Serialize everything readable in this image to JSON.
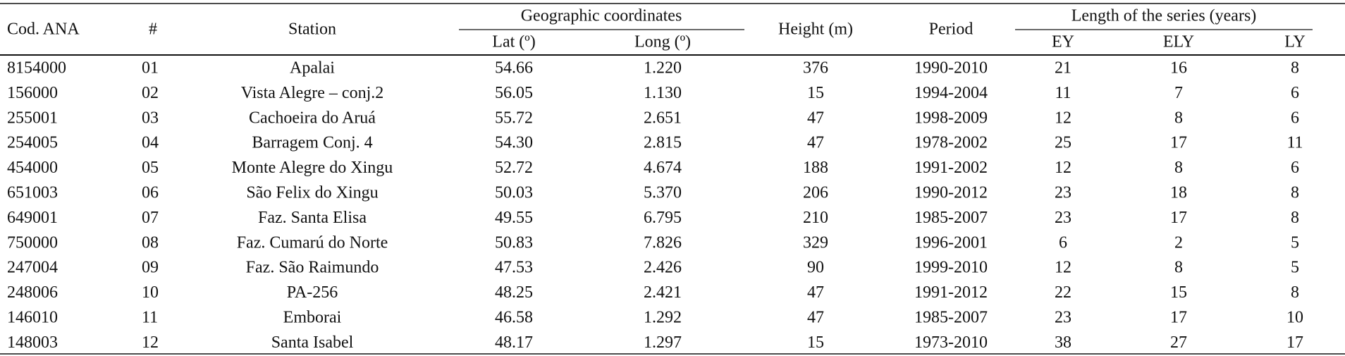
{
  "table": {
    "headers": {
      "cod": "Cod. ANA",
      "num": "#",
      "station": "Station",
      "geo": "Geographic coordinates",
      "lat": "Lat (º)",
      "long": "Long (º)",
      "height": "Height (m)",
      "period": "Period",
      "length": "Length of the series (years)",
      "ey": "EY",
      "ely": "ELY",
      "ly": "LY"
    },
    "rows": [
      [
        "8154000",
        "01",
        "Apalai",
        "54.66",
        "1.220",
        "376",
        "1990-2010",
        "21",
        "16",
        "8"
      ],
      [
        "156000",
        "02",
        "Vista Alegre – conj.2",
        "56.05",
        "1.130",
        "15",
        "1994-2004",
        "11",
        "7",
        "6"
      ],
      [
        "255001",
        "03",
        "Cachoeira do Aruá",
        "55.72",
        "2.651",
        "47",
        "1998-2009",
        "12",
        "8",
        "6"
      ],
      [
        "254005",
        "04",
        "Barragem Conj. 4",
        "54.30",
        "2.815",
        "47",
        "1978-2002",
        "25",
        "17",
        "11"
      ],
      [
        "454000",
        "05",
        "Monte Alegre do Xingu",
        "52.72",
        "4.674",
        "188",
        "1991-2002",
        "12",
        "8",
        "6"
      ],
      [
        "651003",
        "06",
        "São Felix do Xingu",
        "50.03",
        "5.370",
        "206",
        "1990-2012",
        "23",
        "18",
        "8"
      ],
      [
        "649001",
        "07",
        "Faz. Santa Elisa",
        "49.55",
        "6.795",
        "210",
        "1985-2007",
        "23",
        "17",
        "8"
      ],
      [
        "750000",
        "08",
        "Faz. Cumarú do Norte",
        "50.83",
        "7.826",
        "329",
        "1996-2001",
        "6",
        "2",
        "5"
      ],
      [
        "247004",
        "09",
        "Faz. São Raimundo",
        "47.53",
        "2.426",
        "90",
        "1999-2010",
        "12",
        "8",
        "5"
      ],
      [
        "248006",
        "10",
        "PA-256",
        "48.25",
        "2.421",
        "47",
        "1991-2012",
        "22",
        "15",
        "8"
      ],
      [
        "146010",
        "11",
        "Emborai",
        "46.58",
        "1.292",
        "47",
        "1985-2007",
        "23",
        "17",
        "10"
      ],
      [
        "148003",
        "12",
        "Santa Isabel",
        "48.17",
        "1.297",
        "15",
        "1973-2010",
        "38",
        "27",
        "17"
      ]
    ]
  }
}
